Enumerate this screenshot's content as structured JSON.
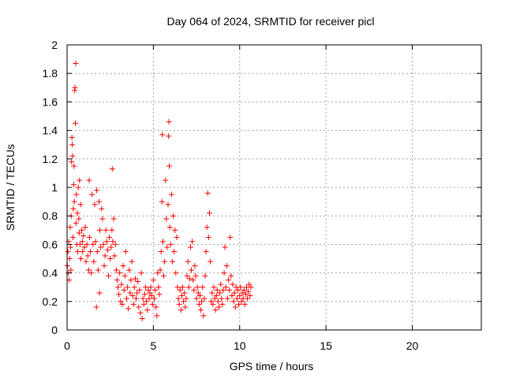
{
  "chart_data": {
    "type": "scatter",
    "title": "Day 064 of 2024, SRMTID for receiver picl",
    "xlabel": "GPS time / hours",
    "ylabel": "SRMTID / TECUs",
    "xlim": [
      0,
      24
    ],
    "ylim": [
      0,
      2
    ],
    "x_ticks": [
      0,
      5,
      10,
      15,
      20
    ],
    "x_tick_labels": [
      "0",
      "5",
      "10",
      "15",
      "20"
    ],
    "y_ticks": [
      0,
      0.2,
      0.4,
      0.6,
      0.8,
      1,
      1.2,
      1.4,
      1.6,
      1.8,
      2
    ],
    "y_tick_labels": [
      "0",
      "0.2",
      "0.4",
      "0.6",
      "0.8",
      "1",
      "1.2",
      "1.4",
      "1.6",
      "1.8",
      "2"
    ],
    "grid": true,
    "marker": "+",
    "color": "#ff0000",
    "series": [
      {
        "name": "SRMTID",
        "points": [
          [
            0.02,
            0.45
          ],
          [
            0.05,
            0.55
          ],
          [
            0.08,
            0.4
          ],
          [
            0.1,
            0.62
          ],
          [
            0.12,
            0.35
          ],
          [
            0.14,
            0.5
          ],
          [
            0.18,
            0.72
          ],
          [
            0.2,
            0.58
          ],
          [
            0.22,
            0.42
          ],
          [
            0.24,
            0.8
          ],
          [
            0.26,
            1.18
          ],
          [
            0.28,
            1.35
          ],
          [
            0.3,
            1.3
          ],
          [
            0.32,
            1.22
          ],
          [
            0.34,
            0.65
          ],
          [
            0.36,
            0.85
          ],
          [
            0.38,
            1.02
          ],
          [
            0.4,
            1.15
          ],
          [
            0.42,
            0.9
          ],
          [
            0.44,
            1.68
          ],
          [
            0.46,
            1.7
          ],
          [
            0.48,
            1.45
          ],
          [
            0.5,
            1.87
          ],
          [
            0.52,
            0.75
          ],
          [
            0.54,
            0.95
          ],
          [
            0.56,
            0.6
          ],
          [
            0.6,
            0.82
          ],
          [
            0.62,
            0.55
          ],
          [
            0.65,
            1.0
          ],
          [
            0.68,
            0.78
          ],
          [
            0.7,
            0.68
          ],
          [
            0.72,
            1.05
          ],
          [
            0.75,
            0.6
          ],
          [
            0.78,
            0.88
          ],
          [
            0.8,
            0.5
          ],
          [
            0.85,
            0.7
          ],
          [
            0.88,
            0.62
          ],
          [
            0.9,
            0.55
          ],
          [
            0.95,
            0.66
          ],
          [
            1.0,
            0.58
          ],
          [
            1.05,
            0.72
          ],
          [
            1.1,
            0.48
          ],
          [
            1.15,
            0.6
          ],
          [
            1.2,
            0.52
          ],
          [
            1.25,
            0.42
          ],
          [
            1.28,
            1.05
          ],
          [
            1.3,
            0.65
          ],
          [
            1.35,
            0.55
          ],
          [
            1.4,
            0.4
          ],
          [
            1.45,
            0.95
          ],
          [
            1.5,
            0.6
          ],
          [
            1.55,
            0.48
          ],
          [
            1.6,
            0.88
          ],
          [
            1.65,
            0.62
          ],
          [
            1.7,
            0.16
          ],
          [
            1.72,
            0.98
          ],
          [
            1.75,
            0.55
          ],
          [
            1.8,
            0.42
          ],
          [
            1.85,
            0.9
          ],
          [
            1.88,
            0.26
          ],
          [
            1.9,
            0.7
          ],
          [
            1.95,
            0.58
          ],
          [
            2.0,
            0.85
          ],
          [
            2.05,
            0.78
          ],
          [
            2.1,
            0.6
          ],
          [
            2.15,
            0.45
          ],
          [
            2.2,
            0.52
          ],
          [
            2.25,
            0.7
          ],
          [
            2.3,
            0.62
          ],
          [
            2.35,
            0.56
          ],
          [
            2.4,
            0.38
          ],
          [
            2.45,
            0.65
          ],
          [
            2.5,
            0.5
          ],
          [
            2.55,
            0.58
          ],
          [
            2.6,
            0.7
          ],
          [
            2.62,
            1.13
          ],
          [
            2.65,
            0.62
          ],
          [
            2.7,
            0.78
          ],
          [
            2.75,
            0.52
          ],
          [
            2.8,
            0.6
          ],
          [
            2.85,
            0.42
          ],
          [
            2.9,
            0.35
          ],
          [
            2.95,
            0.3
          ],
          [
            3.0,
            0.25
          ],
          [
            3.05,
            0.4
          ],
          [
            3.1,
            0.2
          ],
          [
            3.15,
            0.32
          ],
          [
            3.2,
            0.18
          ],
          [
            3.25,
            0.45
          ],
          [
            3.3,
            0.28
          ],
          [
            3.35,
            0.38
          ],
          [
            3.4,
            0.55
          ],
          [
            3.45,
            0.22
          ],
          [
            3.5,
            0.3
          ],
          [
            3.55,
            0.15
          ],
          [
            3.6,
            0.42
          ],
          [
            3.65,
            0.26
          ],
          [
            3.7,
            0.35
          ],
          [
            3.75,
            0.48
          ],
          [
            3.8,
            0.24
          ],
          [
            3.85,
            0.18
          ],
          [
            3.9,
            0.3
          ],
          [
            3.95,
            0.36
          ],
          [
            4.0,
            0.22
          ],
          [
            4.05,
            0.26
          ],
          [
            4.1,
            0.34
          ],
          [
            4.15,
            0.16
          ],
          [
            4.2,
            0.28
          ],
          [
            4.25,
            0.12
          ],
          [
            4.3,
            0.4
          ],
          [
            4.35,
            0.08
          ],
          [
            4.4,
            0.22
          ],
          [
            4.45,
            0.18
          ],
          [
            4.5,
            0.25
          ],
          [
            4.55,
            0.3
          ],
          [
            4.6,
            0.2
          ],
          [
            4.65,
            0.14
          ],
          [
            4.7,
            0.28
          ],
          [
            4.75,
            0.22
          ],
          [
            4.8,
            0.26
          ],
          [
            4.85,
            0.3
          ],
          [
            4.9,
            0.24
          ],
          [
            4.95,
            0.18
          ],
          [
            5.0,
            0.35
          ],
          [
            5.05,
            0.22
          ],
          [
            5.1,
            0.28
          ],
          [
            5.15,
            0.16
          ],
          [
            5.2,
            0.1
          ],
          [
            5.25,
            0.4
          ],
          [
            5.3,
            0.3
          ],
          [
            5.35,
            0.25
          ],
          [
            5.4,
            0.42
          ],
          [
            5.45,
            0.55
          ],
          [
            5.5,
            0.9
          ],
          [
            5.52,
            1.37
          ],
          [
            5.55,
            0.62
          ],
          [
            5.6,
            0.38
          ],
          [
            5.65,
            0.48
          ],
          [
            5.7,
            1.05
          ],
          [
            5.75,
            0.78
          ],
          [
            5.8,
            0.58
          ],
          [
            5.85,
            0.88
          ],
          [
            5.88,
            1.36
          ],
          [
            5.9,
            1.46
          ],
          [
            5.92,
            1.15
          ],
          [
            5.95,
            0.72
          ],
          [
            6.0,
            0.6
          ],
          [
            6.05,
            0.95
          ],
          [
            6.1,
            0.48
          ],
          [
            6.15,
            0.8
          ],
          [
            6.2,
            0.55
          ],
          [
            6.25,
            0.7
          ],
          [
            6.3,
            0.4
          ],
          [
            6.35,
            0.65
          ],
          [
            6.4,
            0.3
          ],
          [
            6.45,
            0.22
          ],
          [
            6.5,
            0.18
          ],
          [
            6.55,
            0.28
          ],
          [
            6.6,
            0.14
          ],
          [
            6.65,
            0.24
          ],
          [
            6.7,
            0.3
          ],
          [
            6.75,
            0.2
          ],
          [
            6.8,
            0.26
          ],
          [
            6.85,
            0.16
          ],
          [
            6.9,
            0.22
          ],
          [
            6.95,
            0.38
          ],
          [
            7.0,
            0.48
          ],
          [
            7.05,
            0.3
          ],
          [
            7.1,
            0.36
          ],
          [
            7.15,
            0.58
          ],
          [
            7.2,
            0.42
          ],
          [
            7.25,
            0.62
          ],
          [
            7.3,
            0.35
          ],
          [
            7.35,
            0.28
          ],
          [
            7.4,
            0.45
          ],
          [
            7.45,
            0.38
          ],
          [
            7.5,
            0.22
          ],
          [
            7.55,
            0.3
          ],
          [
            7.6,
            0.26
          ],
          [
            7.65,
            0.18
          ],
          [
            7.7,
            0.24
          ],
          [
            7.75,
            0.14
          ],
          [
            7.8,
            0.2
          ],
          [
            7.85,
            0.3
          ],
          [
            7.9,
            0.1
          ],
          [
            7.95,
            0.22
          ],
          [
            8.0,
            0.38
          ],
          [
            8.05,
            0.55
          ],
          [
            8.1,
            0.72
          ],
          [
            8.15,
            0.96
          ],
          [
            8.2,
            0.65
          ],
          [
            8.25,
            0.82
          ],
          [
            8.3,
            0.48
          ],
          [
            8.35,
            0.2
          ],
          [
            8.4,
            0.26
          ],
          [
            8.45,
            0.18
          ],
          [
            8.5,
            0.3
          ],
          [
            8.55,
            0.22
          ],
          [
            8.6,
            0.14
          ],
          [
            8.65,
            0.24
          ],
          [
            8.7,
            0.28
          ],
          [
            8.75,
            0.2
          ],
          [
            8.8,
            0.16
          ],
          [
            8.85,
            0.26
          ],
          [
            8.9,
            0.32
          ],
          [
            8.95,
            0.22
          ],
          [
            9.0,
            0.18
          ],
          [
            9.05,
            0.28
          ],
          [
            9.1,
            0.4
          ],
          [
            9.15,
            0.58
          ],
          [
            9.2,
            0.3
          ],
          [
            9.25,
            0.45
          ],
          [
            9.3,
            0.22
          ],
          [
            9.35,
            0.35
          ],
          [
            9.4,
            0.28
          ],
          [
            9.45,
            0.65
          ],
          [
            9.5,
            0.38
          ],
          [
            9.55,
            0.24
          ],
          [
            9.6,
            0.32
          ],
          [
            9.65,
            0.2
          ],
          [
            9.7,
            0.26
          ],
          [
            9.75,
            0.16
          ],
          [
            9.8,
            0.3
          ],
          [
            9.85,
            0.22
          ],
          [
            9.9,
            0.28
          ],
          [
            9.95,
            0.18
          ],
          [
            10.0,
            0.24
          ],
          [
            10.05,
            0.3
          ],
          [
            10.1,
            0.2
          ],
          [
            10.15,
            0.26
          ],
          [
            10.2,
            0.22
          ],
          [
            10.25,
            0.28
          ],
          [
            10.3,
            0.18
          ],
          [
            10.35,
            0.25
          ],
          [
            10.4,
            0.3
          ],
          [
            10.45,
            0.22
          ],
          [
            10.5,
            0.27
          ],
          [
            10.55,
            0.32
          ],
          [
            10.6,
            0.24
          ],
          [
            10.65,
            0.3
          ]
        ]
      }
    ]
  }
}
